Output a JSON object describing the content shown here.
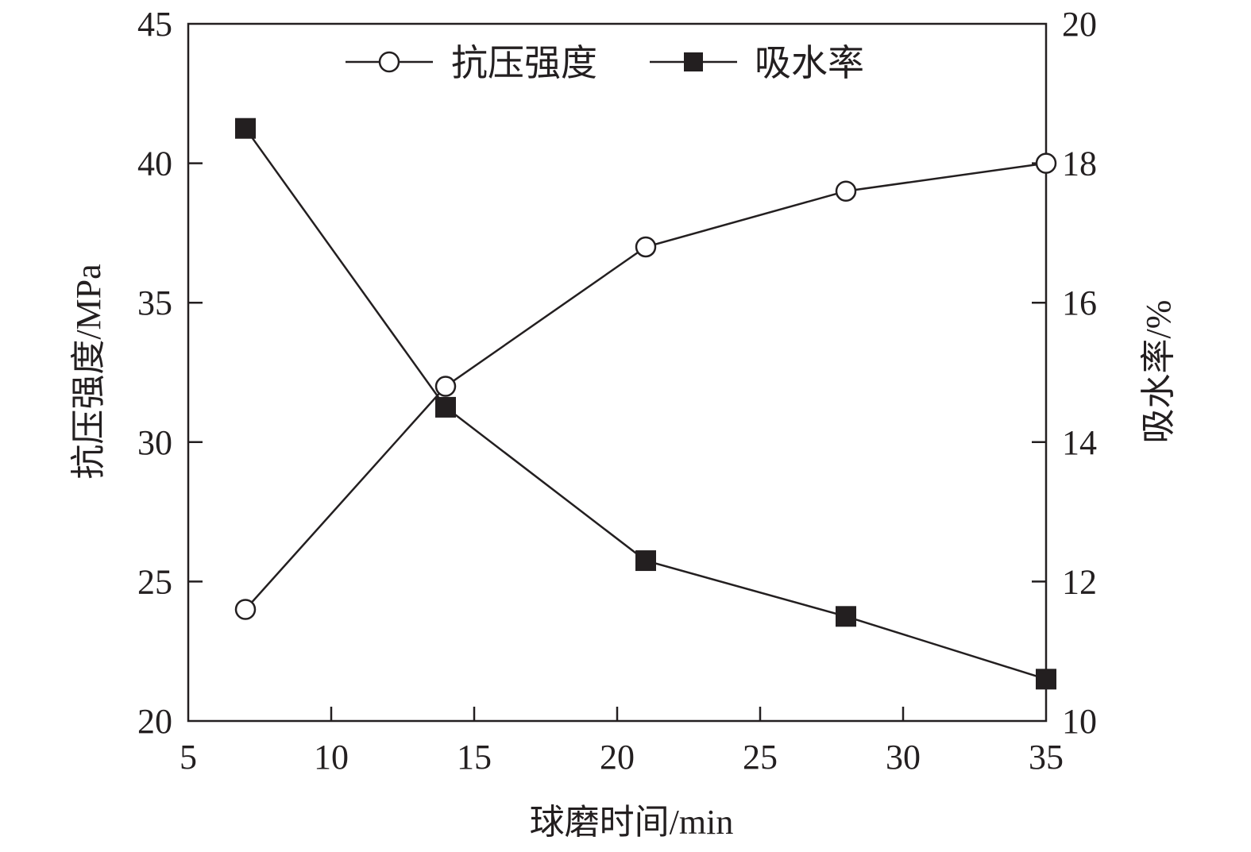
{
  "chart_data": {
    "type": "line",
    "xlabel": "球磨时间/min",
    "ylabel_left": "抗压强度/MPa",
    "ylabel_right": "吸水率/%",
    "xlim": [
      5,
      35
    ],
    "ylim_left": [
      20,
      45
    ],
    "ylim_right": [
      10,
      20
    ],
    "x_ticks": [
      5,
      10,
      15,
      20,
      25,
      30,
      35
    ],
    "y_left_ticks": [
      20,
      25,
      30,
      35,
      40,
      45
    ],
    "y_right_ticks": [
      10,
      12,
      14,
      16,
      18,
      20
    ],
    "x": [
      7,
      14,
      21,
      28,
      35
    ],
    "series": [
      {
        "name": "抗压强度",
        "axis": "left",
        "marker": "open-circle",
        "values": [
          24,
          32,
          37,
          39,
          40
        ]
      },
      {
        "name": "吸水率",
        "axis": "right",
        "marker": "filled-square",
        "values": [
          18.5,
          14.5,
          12.3,
          11.5,
          10.6
        ]
      }
    ],
    "legend_position": "top-center",
    "grid": false,
    "colors": {
      "line": "#231f20",
      "marker_fill_open": "#ffffff",
      "marker_fill_solid": "#231f20"
    }
  }
}
